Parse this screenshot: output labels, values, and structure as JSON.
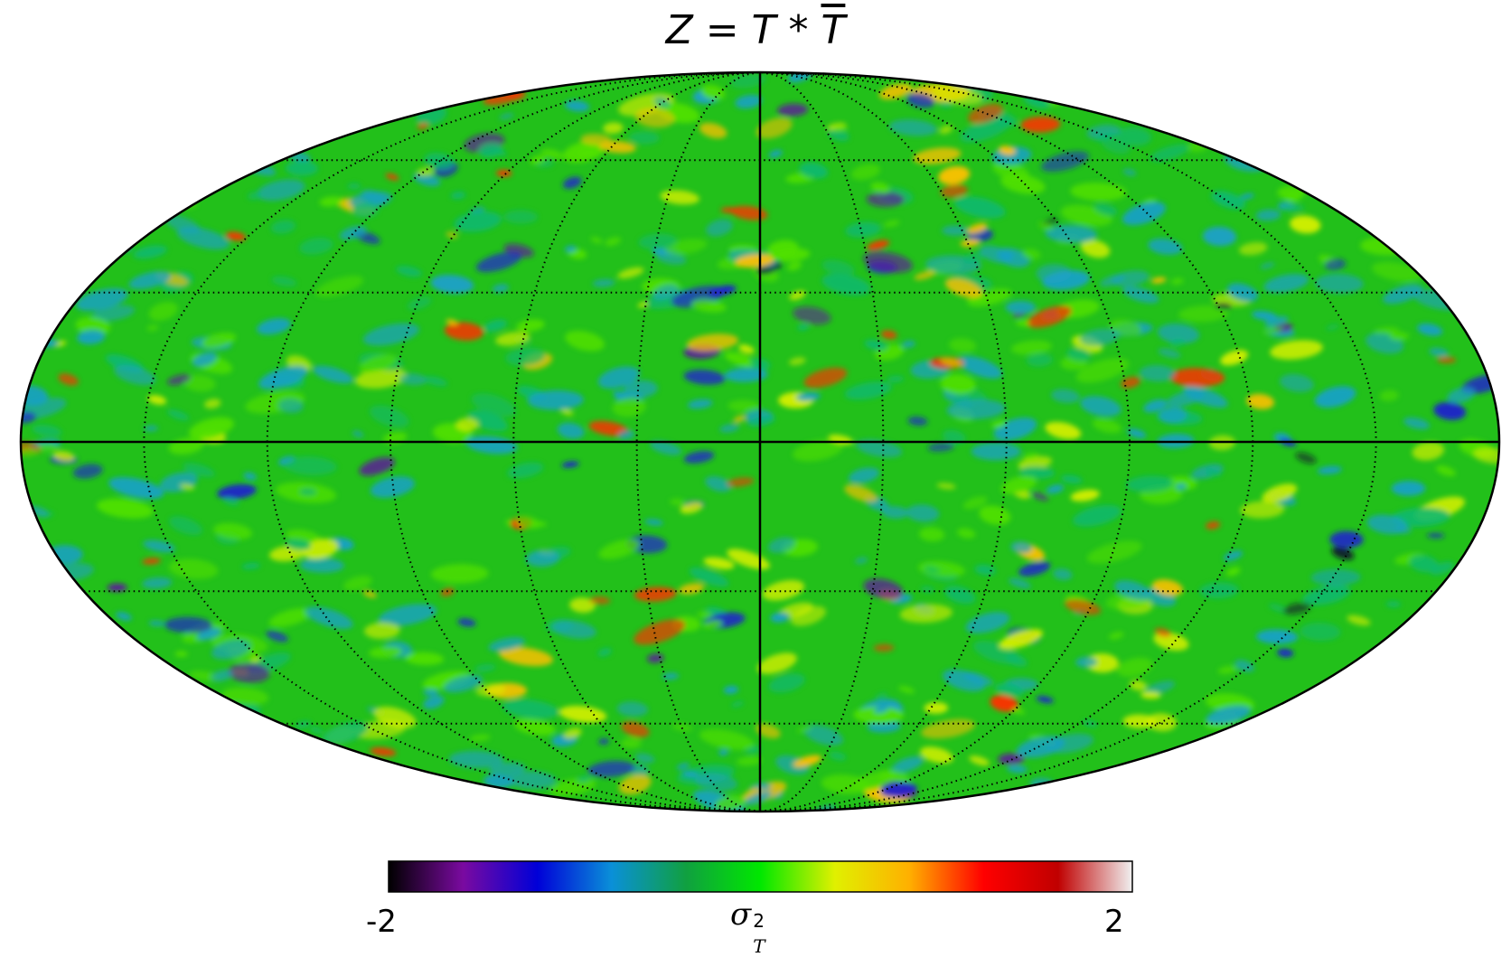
{
  "title": {
    "lhs": "Z",
    "eq": " = ",
    "t1": "T",
    "op": " * ",
    "t2": "T"
  },
  "colorbar": {
    "min_label": "-2",
    "max_label": "2",
    "quantity_symbol": "σ",
    "quantity_sup": "2",
    "quantity_sub": "T",
    "range": [
      -2,
      2
    ],
    "stops": [
      "#000000",
      "#7a0aa0",
      "#0000d8",
      "#0a90d8",
      "#10a040",
      "#00e800",
      "#e0f000",
      "#ffb000",
      "#ff0000",
      "#c00000",
      "#f0f0f0"
    ]
  },
  "map": {
    "projection": "mollweide",
    "background_color": "#22c01a",
    "graticule": {
      "meridian_step_deg": 30,
      "parallel_step_deg": 30,
      "style": "dotted"
    },
    "center_axes": true
  }
}
